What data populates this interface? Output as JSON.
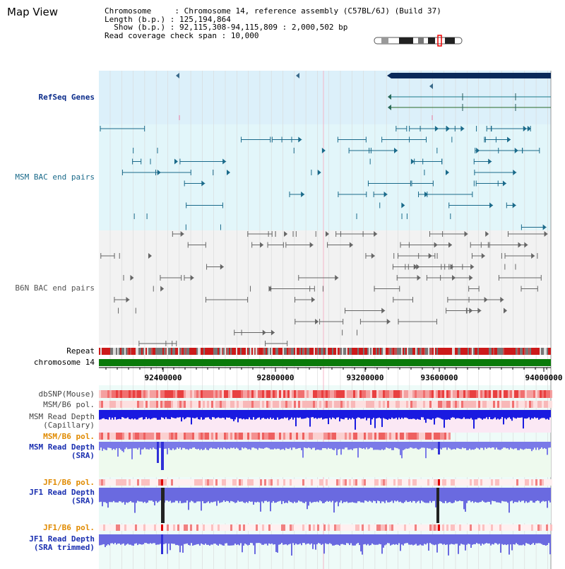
{
  "title": "Map View",
  "info": {
    "chromosome_key": "Chromosome     : ",
    "chromosome_val": "Chromosome 14, reference assembly (C57BL/6J) (Build 37)",
    "length_key": "Length (b.p.) : ",
    "length_val": "125,194,864",
    "show_key": "  Show (b.p.) : ",
    "show_val": "92,115,308-94,115,809 : 2,000,502 bp",
    "span_key": "Read coverage check span : ",
    "span_val": "10,000"
  },
  "tracks": {
    "refseq": "RefSeq Genes",
    "msm_bac": "MSM BAC end pairs",
    "b6n_bac": "B6N BAC end pairs",
    "repeat": "Repeat",
    "chromosome": "chromosome 14",
    "dbsnp": "dbSNP(Mouse)",
    "msm_b6_pol": "MSM/B6 pol.",
    "msm_depth_cap_1": "MSM Read Depth",
    "msm_depth_cap_2": "(Capillary)",
    "msm_b6_pol_sra": "MSM/B6 pol.",
    "msm_depth_sra_1": "MSM Read Depth",
    "msm_depth_sra_2": "(SRA)",
    "jf1_b6_pol": "JF1/B6 pol.",
    "jf1_depth_sra_1": "JF1 Read Depth",
    "jf1_depth_sra_2": "(SRA)",
    "jf1_b6_pol_trim": "JF1/B6 pol.",
    "jf1_depth_trim_1": "JF1 Read Depth",
    "jf1_depth_trim_2": "(SRA trimmed)"
  },
  "axis": {
    "ticks": [
      "92400000",
      "92800000",
      "93200000",
      "93600000",
      "94000000"
    ]
  },
  "colors": {
    "refseq_bg": "#dcf0fa",
    "msm_bg": "#e2f6fa",
    "b6n_bg": "#f2f2f2",
    "refseq_label": "#0a2b8a",
    "msm_label": "#1a6a8a",
    "b6n_label": "#555555",
    "orange_label": "#e08a00",
    "blue_label": "#1a2fb0",
    "chromosome_bar": "#0a7a0a"
  }
}
